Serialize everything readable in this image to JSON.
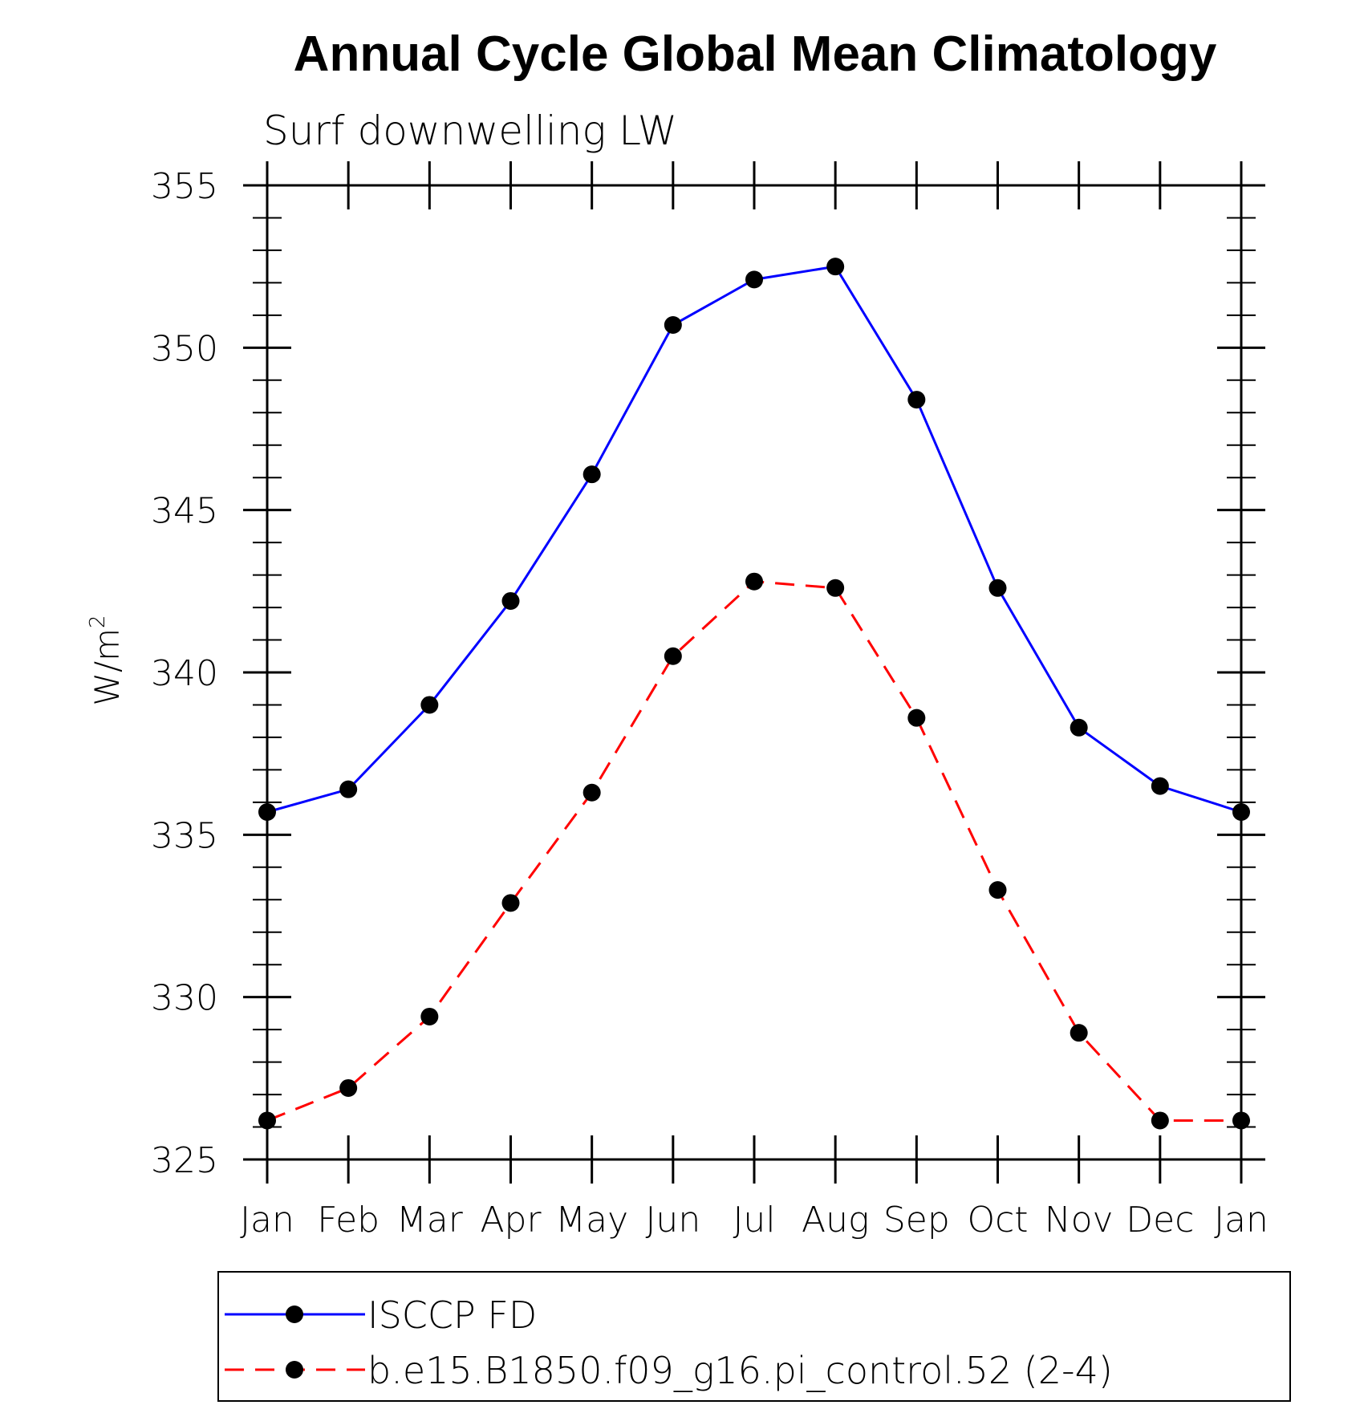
{
  "chart_data": {
    "type": "line",
    "title": "Annual Cycle Global Mean Climatology",
    "subtitle": "Surf downwelling LW",
    "ylabel": "W/m",
    "ylabel_sup": "2",
    "xlabel": "",
    "categories": [
      "Jan",
      "Feb",
      "Mar",
      "Apr",
      "May",
      "Jun",
      "Jul",
      "Aug",
      "Sep",
      "Oct",
      "Nov",
      "Dec",
      "Jan"
    ],
    "ylim": [
      325,
      355
    ],
    "yticks": [
      325,
      330,
      335,
      340,
      345,
      350,
      355
    ],
    "grid": false,
    "legend_position": "bottom",
    "series": [
      {
        "name": "ISCCP FD",
        "color": "#0000ff",
        "dash": "solid",
        "marker": "filled-circle",
        "values": [
          335.7,
          336.4,
          339.0,
          342.2,
          346.1,
          350.7,
          352.1,
          352.5,
          348.4,
          342.6,
          338.3,
          336.5,
          335.7
        ]
      },
      {
        "name": "b.e15.B1850.f09_g16.pi_control.52 (2-4)",
        "color": "#ff0000",
        "dash": "dashed",
        "marker": "filled-circle",
        "values": [
          326.2,
          327.2,
          329.4,
          332.9,
          336.3,
          340.5,
          342.8,
          342.6,
          338.6,
          333.3,
          328.9,
          326.2,
          326.2
        ]
      }
    ]
  }
}
